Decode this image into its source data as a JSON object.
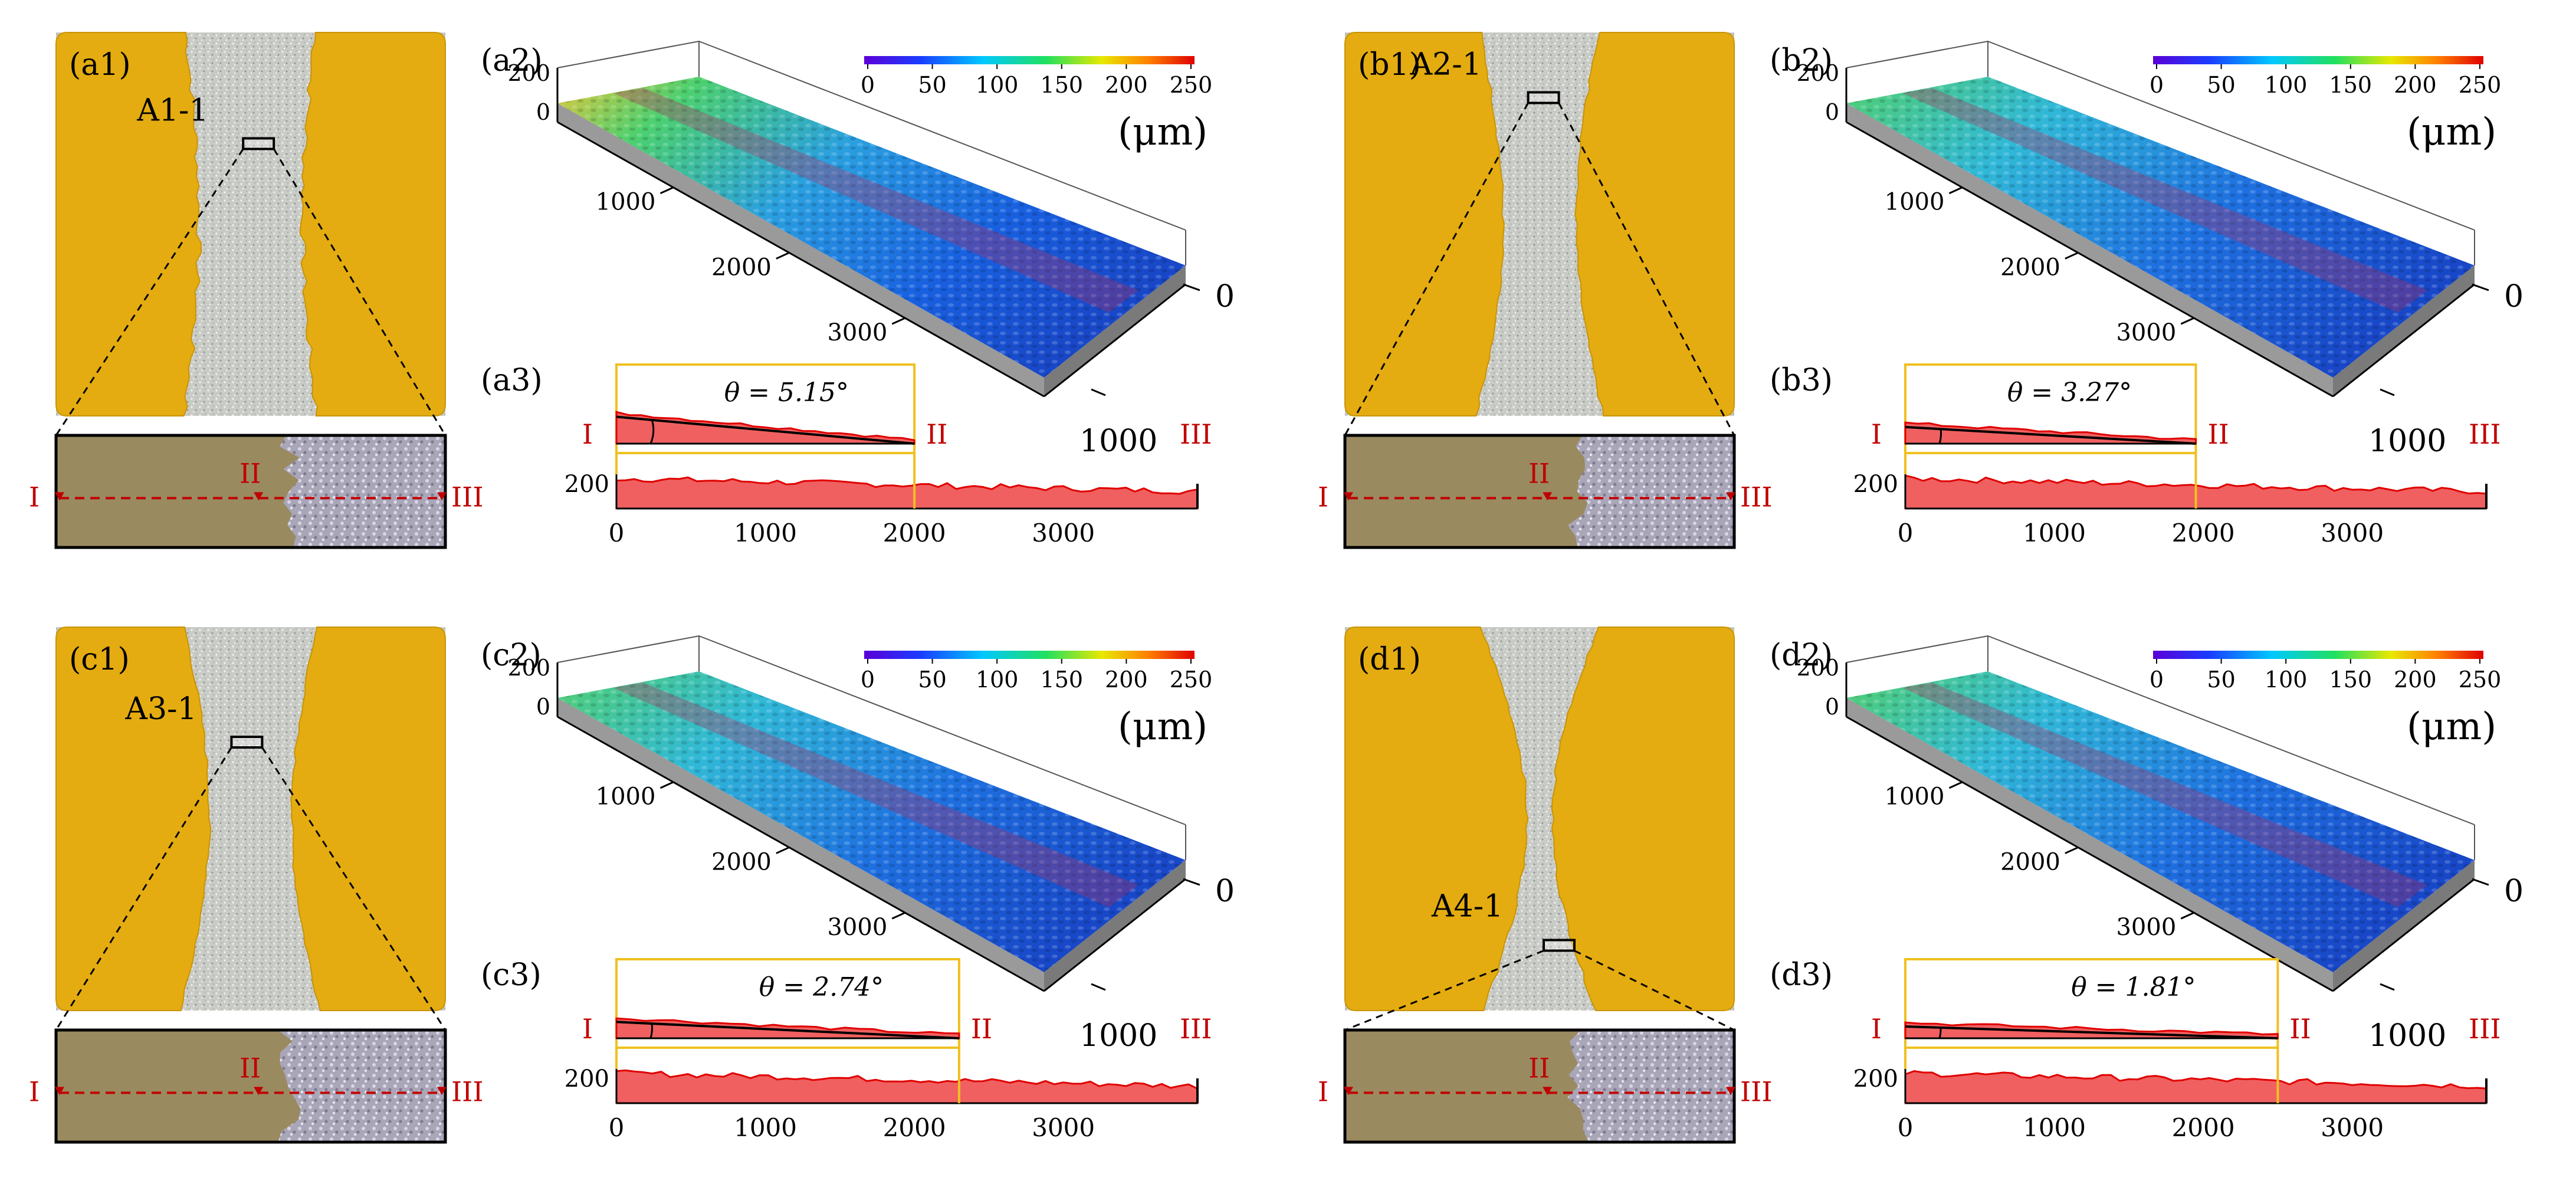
{
  "colorbar": {
    "ticks": [
      "0",
      "50",
      "100",
      "150",
      "200",
      "250"
    ],
    "unit": "(μm)",
    "colors": [
      "#5a00d8",
      "#1a3cff",
      "#00c8ff",
      "#20e060",
      "#e8e800",
      "#ff8000",
      "#e00000"
    ]
  },
  "colors": {
    "substrate": "#e4ac10",
    "sand": "#c9cbc6",
    "profile_fill": "#f06060",
    "profile_line": "#e00000",
    "guide": "#f0c020",
    "marker": "#c00000"
  },
  "panels": [
    {
      "key": "a",
      "label1": "(a1)",
      "label2": "(a2)",
      "label3": "(a3)",
      "sample": "A1-1",
      "theta_text": "θ = 5.15°",
      "theta_deg": 5.15,
      "transition": 2000,
      "profile_ticks": [
        "0",
        "1000",
        "2000",
        "3000"
      ],
      "profile_y": "200",
      "axis_left": [
        "200",
        "0"
      ],
      "axis_depth": [
        "1000",
        "2000",
        "3000"
      ],
      "axis_right": [
        "0",
        "1000"
      ],
      "markers": [
        "I",
        "II",
        "III"
      ]
    },
    {
      "key": "b",
      "label1": "(b1)",
      "label2": "(b2)",
      "label3": "(b3)",
      "sample": "A2-1",
      "theta_text": "θ = 3.27°",
      "theta_deg": 3.27,
      "transition": 1950,
      "profile_ticks": [
        "0",
        "1000",
        "2000",
        "3000"
      ],
      "profile_y": "200",
      "axis_left": [
        "200",
        "0"
      ],
      "axis_depth": [
        "1000",
        "2000",
        "3000"
      ],
      "axis_right": [
        "0",
        "1000"
      ],
      "markers": [
        "I",
        "II",
        "III"
      ]
    },
    {
      "key": "c",
      "label1": "(c1)",
      "label2": "(c2)",
      "label3": "(c3)",
      "sample": "A3-1",
      "theta_text": "θ = 2.74°",
      "theta_deg": 2.74,
      "transition": 2300,
      "profile_ticks": [
        "0",
        "1000",
        "2000",
        "3000"
      ],
      "profile_y": "200",
      "axis_left": [
        "200",
        "0"
      ],
      "axis_depth": [
        "1000",
        "2000",
        "3000"
      ],
      "axis_right": [
        "0",
        "1000"
      ],
      "markers": [
        "I",
        "II",
        "III"
      ]
    },
    {
      "key": "d",
      "label1": "(d1)",
      "label2": "(d2)",
      "label3": "(d3)",
      "sample": "A4-1",
      "theta_text": "θ = 1.81°",
      "theta_deg": 1.81,
      "transition": 2500,
      "profile_ticks": [
        "0",
        "1000",
        "2000",
        "3000"
      ],
      "profile_y": "200",
      "axis_left": [
        "200",
        "0"
      ],
      "axis_depth": [
        "1000",
        "2000",
        "3000"
      ],
      "axis_right": [
        "0",
        "1000"
      ],
      "markers": [
        "I",
        "II",
        "III"
      ]
    }
  ]
}
